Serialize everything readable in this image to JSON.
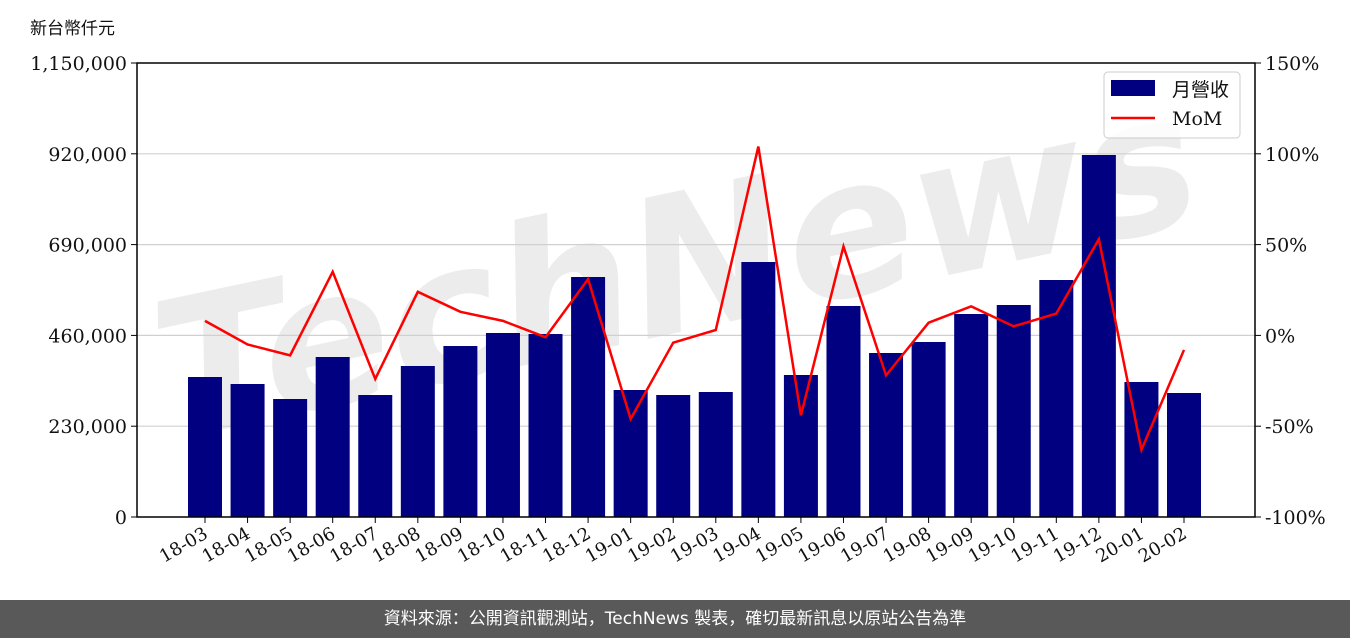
{
  "chart_data": {
    "type": "bar+line",
    "unit_label": "新台幣仟元",
    "categories": [
      "18-03",
      "18-04",
      "18-05",
      "18-06",
      "18-07",
      "18-08",
      "18-09",
      "18-10",
      "18-11",
      "18-12",
      "19-01",
      "19-02",
      "19-03",
      "19-04",
      "19-05",
      "19-06",
      "19-07",
      "19-08",
      "19-09",
      "19-10",
      "19-11",
      "19-12",
      "20-01",
      "20-02"
    ],
    "series": [
      {
        "name": "月營收",
        "type": "bar",
        "axis": "left",
        "color": "#000080",
        "values": [
          354600,
          336900,
          298900,
          405300,
          309000,
          382500,
          433100,
          466100,
          463500,
          607900,
          321700,
          309000,
          316600,
          645900,
          359700,
          534500,
          415400,
          443300,
          514200,
          537000,
          600300,
          917000,
          342000,
          314100
        ]
      },
      {
        "name": "MoM",
        "type": "line",
        "axis": "right",
        "color": "#ff0000",
        "values": [
          8,
          -5,
          -11,
          35,
          -24,
          24,
          13,
          8,
          -1,
          31,
          -46,
          -4,
          3,
          104,
          -44,
          49,
          -22,
          7,
          16,
          5,
          12,
          53,
          -63,
          -8
        ]
      }
    ],
    "left_axis": {
      "ylim": [
        0,
        1150000
      ],
      "ticks": [
        "0",
        "230,000",
        "460,000",
        "690,000",
        "920,000",
        "1,150,000"
      ],
      "tick_values": [
        0,
        230000,
        460000,
        690000,
        920000,
        1150000
      ]
    },
    "right_axis": {
      "ylim": [
        -100,
        150
      ],
      "ticks": [
        "-100%",
        "-50%",
        "0%",
        "50%",
        "100%",
        "150%"
      ],
      "tick_values": [
        -100,
        -50,
        0,
        50,
        100,
        150
      ]
    },
    "grid": true,
    "legend": "top-right",
    "watermark": "TechNews"
  },
  "footer": "資料來源：公開資訊觀測站，TechNews 製表，確切最新訊息以原站公告為準"
}
